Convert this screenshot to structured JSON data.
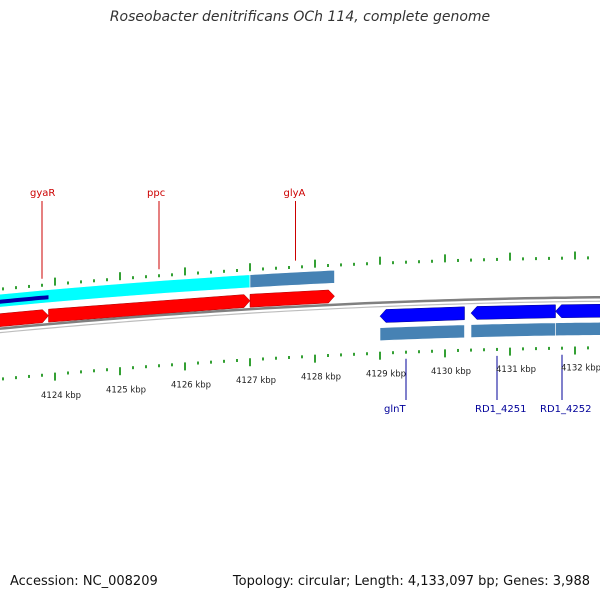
{
  "title": "Roseobacter denitrificans OCh 114, complete genome",
  "footer": {
    "accession": "Accession: NC_008209",
    "summary": "Topology: circular; Length: 4,133,097 bp; Genes: 3,988"
  },
  "axis": {
    "unit": "kbp",
    "visible_start_kbp": 4123.4,
    "visible_end_kbp": 4132.6,
    "tick_labels": [
      "4124 kbp",
      "4125 kbp",
      "4126 kbp",
      "4127 kbp",
      "4128 kbp",
      "4129 kbp",
      "4130 kbp",
      "4131 kbp",
      "4132 kbp"
    ]
  },
  "colors": {
    "tick": "#008800",
    "forward_gene": "#ff0000",
    "reverse_gene": "#0000ff",
    "cds_band": "#4682b4",
    "cyan_band": "#00ffff",
    "backbone": "#808080",
    "top_label": "#cc0000",
    "bottom_label": "#000099"
  },
  "top_labels": [
    {
      "text": "gyaR",
      "kbp": 4123.8
    },
    {
      "text": "ppc",
      "kbp": 4125.6
    },
    {
      "text": "glyA",
      "kbp": 4127.7
    }
  ],
  "bottom_labels": [
    {
      "text": "glnT",
      "kbp": 4129.4
    },
    {
      "text": "RD1_4251",
      "kbp": 4130.8
    },
    {
      "text": "RD1_4252",
      "kbp": 4131.8
    }
  ],
  "features": {
    "upper_strand": [
      {
        "type": "gene",
        "start_kbp": 4123.0,
        "end_kbp": 4123.9,
        "strand": "+"
      },
      {
        "type": "gene",
        "start_kbp": 4123.9,
        "end_kbp": 4127.0,
        "strand": "+"
      },
      {
        "type": "gene",
        "start_kbp": 4127.0,
        "end_kbp": 4128.3,
        "strand": "+"
      }
    ],
    "upper_bands": [
      {
        "type": "cyan",
        "start_kbp": 4123.0,
        "end_kbp": 4127.0
      },
      {
        "type": "cds",
        "start_kbp": 4127.0,
        "end_kbp": 4128.3
      }
    ],
    "lower_strand": [
      {
        "type": "gene",
        "start_kbp": 4129.0,
        "end_kbp": 4130.3,
        "strand": "-"
      },
      {
        "type": "gene",
        "start_kbp": 4130.4,
        "end_kbp": 4131.7,
        "strand": "-"
      },
      {
        "type": "gene",
        "start_kbp": 4131.7,
        "end_kbp": 4132.4,
        "strand": "-"
      },
      {
        "type": "gene",
        "start_kbp": 4132.4,
        "end_kbp": 4133.0,
        "strand": "-"
      }
    ],
    "lower_bands": [
      {
        "type": "cds",
        "start_kbp": 4129.0,
        "end_kbp": 4130.3
      },
      {
        "type": "cds",
        "start_kbp": 4130.4,
        "end_kbp": 4131.7
      },
      {
        "type": "cds",
        "start_kbp": 4131.7,
        "end_kbp": 4133.0
      }
    ]
  }
}
